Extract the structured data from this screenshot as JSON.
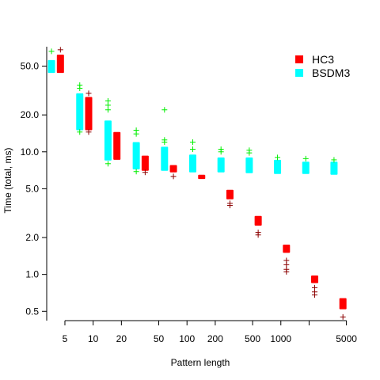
{
  "chart_data": {
    "type": "scatter",
    "title": "",
    "xlabel": "Pattern length",
    "ylabel": "Time (total, ms)",
    "x_scale": "log",
    "y_scale": "log",
    "xlim": [
      3.2,
      6000
    ],
    "ylim": [
      0.42,
      72
    ],
    "x_ticks": [
      5,
      10,
      20,
      50,
      100,
      200,
      500,
      1000,
      2000,
      5000
    ],
    "x_tick_labels": [
      "5",
      "10",
      "20",
      "50",
      "100",
      "200",
      "500",
      "1000",
      "",
      "5000"
    ],
    "y_ticks": [
      0.5,
      1,
      2,
      5,
      10,
      20,
      50
    ],
    "y_tick_labels": [
      "0.5",
      "1.0",
      "2.0",
      "5.0",
      "10.0",
      "20.0",
      "50.0"
    ],
    "grid": false,
    "legend_position": "top-right",
    "series": [
      {
        "name": "HC3",
        "color": "#ff0000",
        "outlier_color": "#8b0000",
        "x_offset": 1.12,
        "data": [
          {
            "x": 4,
            "low": 44,
            "high": 62,
            "outliers": [
              68
            ]
          },
          {
            "x": 8,
            "low": 15,
            "high": 28,
            "outliers": [
              30,
              14.5
            ]
          },
          {
            "x": 16,
            "low": 8.6,
            "high": 14.5,
            "outliers": []
          },
          {
            "x": 32,
            "low": 7.0,
            "high": 9.3,
            "outliers": [
              6.8
            ]
          },
          {
            "x": 64,
            "low": 6.8,
            "high": 7.8,
            "outliers": [
              6.3
            ]
          },
          {
            "x": 128,
            "low": 6.0,
            "high": 6.5,
            "outliers": []
          },
          {
            "x": 256,
            "low": 4.1,
            "high": 4.9,
            "outliers": [
              3.8,
              3.65
            ]
          },
          {
            "x": 512,
            "low": 2.5,
            "high": 3.0,
            "outliers": [
              2.1,
              2.2
            ]
          },
          {
            "x": 1024,
            "low": 1.5,
            "high": 1.75,
            "outliers": [
              1.3,
              1.2,
              1.1,
              1.05
            ]
          },
          {
            "x": 2048,
            "low": 0.85,
            "high": 0.98,
            "outliers": [
              0.78,
              0.72,
              0.68
            ]
          },
          {
            "x": 4096,
            "low": 0.52,
            "high": 0.64,
            "outliers": [
              0.45
            ]
          }
        ]
      },
      {
        "name": "BSDM3",
        "color": "#00ffff",
        "outlier_color": "#00ee00",
        "x_offset": 0.9,
        "data": [
          {
            "x": 4,
            "low": 44,
            "high": 56,
            "outliers": [
              66
            ]
          },
          {
            "x": 8,
            "low": 15,
            "high": 30,
            "outliers": [
              35,
              33,
              14.5
            ]
          },
          {
            "x": 16,
            "low": 8.5,
            "high": 18,
            "outliers": [
              26,
              24,
              22,
              8.0
            ]
          },
          {
            "x": 32,
            "low": 7.2,
            "high": 12,
            "outliers": [
              15,
              14,
              6.9
            ]
          },
          {
            "x": 64,
            "low": 7.0,
            "high": 11,
            "outliers": [
              22,
              12.5,
              12
            ]
          },
          {
            "x": 128,
            "low": 6.8,
            "high": 9.5,
            "outliers": [
              12,
              10.5
            ]
          },
          {
            "x": 256,
            "low": 6.8,
            "high": 9.0,
            "outliers": [
              10.5,
              10
            ]
          },
          {
            "x": 512,
            "low": 6.7,
            "high": 9.0,
            "outliers": [
              10.3,
              9.8
            ]
          },
          {
            "x": 1024,
            "low": 6.6,
            "high": 8.6,
            "outliers": [
              9
            ]
          },
          {
            "x": 2048,
            "low": 6.6,
            "high": 8.3,
            "outliers": [
              8.8
            ]
          },
          {
            "x": 4096,
            "low": 6.5,
            "high": 8.3,
            "outliers": [
              8.6
            ]
          }
        ]
      }
    ]
  }
}
